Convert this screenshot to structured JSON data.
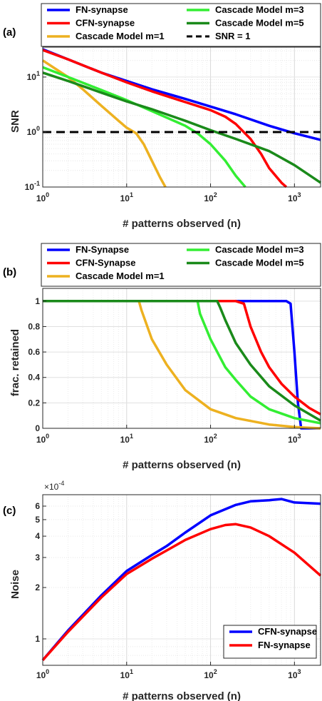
{
  "chart_data": [
    {
      "panel": "(a)",
      "type": "line",
      "xlabel": "# patterns observed (n)",
      "ylabel": "SNR",
      "xscale": "log",
      "yscale": "log",
      "xlim": [
        1,
        2048
      ],
      "ylim": [
        0.1,
        35
      ],
      "xticks": [
        1,
        10,
        100,
        1000
      ],
      "xtick_labels": [
        "10^0",
        "10^1",
        "10^2",
        "10^3"
      ],
      "yticks": [
        0.1,
        1,
        10
      ],
      "ytick_labels": [
        "10^-1",
        "10^0",
        "10^1"
      ],
      "grid": true,
      "legend_position": "top (two columns)",
      "series": [
        {
          "name": "FN-synapse",
          "color": "#0000ff",
          "x": [
            1,
            2,
            5,
            10,
            20,
            50,
            100,
            200,
            500,
            1000,
            2048
          ],
          "y": [
            32,
            21,
            12,
            8.5,
            6.0,
            4.0,
            2.9,
            2.1,
            1.3,
            0.95,
            0.72
          ]
        },
        {
          "name": "Cascade Model m=1",
          "color": "#edb120",
          "x": [
            1,
            2,
            3,
            5,
            8,
            10,
            13,
            16,
            20,
            25,
            29
          ],
          "y": [
            20,
            10,
            6.0,
            3.0,
            1.6,
            1.2,
            0.95,
            0.6,
            0.3,
            0.15,
            0.1
          ]
        },
        {
          "name": "CFN-synapse",
          "color": "#ff0000",
          "x": [
            1,
            2,
            5,
            10,
            20,
            50,
            100,
            150,
            200,
            300,
            400,
            500,
            700,
            800
          ],
          "y": [
            31,
            21,
            12,
            8.0,
            5.5,
            3.5,
            2.5,
            1.9,
            1.4,
            0.75,
            0.4,
            0.22,
            0.12,
            0.1
          ]
        },
        {
          "name": "Cascade Model m=3",
          "color": "#33ee33",
          "x": [
            1,
            2,
            5,
            10,
            20,
            50,
            70,
            100,
            150,
            200,
            260
          ],
          "y": [
            15,
            10,
            5.8,
            3.8,
            2.4,
            1.3,
            0.95,
            0.6,
            0.3,
            0.16,
            0.1
          ]
        },
        {
          "name": "Cascade Model m=5",
          "color": "#1a8a1a",
          "x": [
            1,
            2,
            5,
            10,
            20,
            50,
            100,
            200,
            500,
            1000,
            2048
          ],
          "y": [
            12,
            8.5,
            5.2,
            3.6,
            2.6,
            1.6,
            1.08,
            0.75,
            0.45,
            0.25,
            0.12
          ]
        },
        {
          "name": "SNR = 1",
          "color": "#000000",
          "dashed": true,
          "x": [
            1,
            2048
          ],
          "y": [
            1,
            1
          ]
        }
      ]
    },
    {
      "panel": "(b)",
      "type": "line",
      "xlabel": "# patterns observed (n)",
      "ylabel": "frac. retained",
      "xscale": "log",
      "yscale": "linear",
      "xlim": [
        1,
        2048
      ],
      "ylim": [
        0,
        1.1
      ],
      "xticks": [
        1,
        10,
        100,
        1000
      ],
      "xtick_labels": [
        "10^0",
        "10^1",
        "10^2",
        "10^3"
      ],
      "yticks": [
        0,
        0.2,
        0.4,
        0.6,
        0.8,
        1
      ],
      "ytick_labels": [
        "0",
        "0.2",
        "0.4",
        "0.6",
        "0.8",
        "1"
      ],
      "grid": true,
      "legend_position": "top (two columns)",
      "series": [
        {
          "name": "FN-Synapse",
          "color": "#0000ff",
          "x": [
            1,
            800,
            900,
            1000,
            1100,
            1200,
            2048
          ],
          "y": [
            1,
            1,
            0.98,
            0.6,
            0.2,
            0,
            0
          ]
        },
        {
          "name": "CFN-Synapse",
          "color": "#ff0000",
          "x": [
            1,
            200,
            250,
            300,
            400,
            500,
            700,
            1000,
            1500,
            2048
          ],
          "y": [
            1,
            1,
            0.98,
            0.8,
            0.6,
            0.48,
            0.35,
            0.25,
            0.16,
            0.11
          ]
        },
        {
          "name": "Cascade Model m=1",
          "color": "#edb120",
          "x": [
            1,
            14,
            15,
            20,
            30,
            50,
            100,
            200,
            500,
            1000,
            2048
          ],
          "y": [
            1,
            1,
            0.93,
            0.7,
            0.5,
            0.3,
            0.15,
            0.08,
            0.03,
            0.01,
            0
          ]
        },
        {
          "name": "Cascade Model m=3",
          "color": "#33ee33",
          "x": [
            1,
            70,
            75,
            100,
            150,
            200,
            300,
            500,
            1000,
            2048
          ],
          "y": [
            1,
            1,
            0.9,
            0.7,
            0.48,
            0.38,
            0.25,
            0.15,
            0.08,
            0.04
          ]
        },
        {
          "name": "Cascade Model m=5",
          "color": "#1a8a1a",
          "x": [
            1,
            120,
            130,
            150,
            200,
            300,
            500,
            1000,
            2048
          ],
          "y": [
            1,
            1,
            0.95,
            0.85,
            0.67,
            0.5,
            0.33,
            0.18,
            0.06
          ]
        }
      ]
    },
    {
      "panel": "(c)",
      "type": "line",
      "xlabel": "# patterns observed (n)",
      "ylabel": "Noise",
      "exponent_label": "×10^-4",
      "xscale": "log",
      "yscale": "log",
      "xlim": [
        1,
        2048
      ],
      "ylim": [
        0.7,
        7.0
      ],
      "xticks": [
        1,
        10,
        100,
        1000
      ],
      "xtick_labels": [
        "10^0",
        "10^1",
        "10^2",
        "10^3"
      ],
      "yticks": [
        1,
        2,
        3,
        4,
        5,
        6
      ],
      "ytick_labels": [
        "1",
        "2",
        "3",
        "4",
        "5",
        "6"
      ],
      "grid": true,
      "legend_position": "bottom-right",
      "series": [
        {
          "name": "CFN-synapse",
          "color": "#0000ff",
          "x": [
            1,
            2,
            5,
            10,
            20,
            30,
            50,
            100,
            200,
            300,
            500,
            700,
            1000,
            2048
          ],
          "y": [
            0.75,
            1.12,
            1.8,
            2.5,
            3.1,
            3.5,
            4.2,
            5.3,
            6.1,
            6.4,
            6.5,
            6.6,
            6.3,
            6.2
          ]
        },
        {
          "name": "FN-synapse",
          "color": "#ff0000",
          "x": [
            1,
            2,
            5,
            10,
            20,
            30,
            50,
            100,
            150,
            200,
            300,
            500,
            1000,
            2048
          ],
          "y": [
            0.75,
            1.1,
            1.75,
            2.4,
            2.95,
            3.3,
            3.8,
            4.4,
            4.65,
            4.7,
            4.5,
            4.0,
            3.2,
            2.35
          ]
        }
      ]
    }
  ]
}
